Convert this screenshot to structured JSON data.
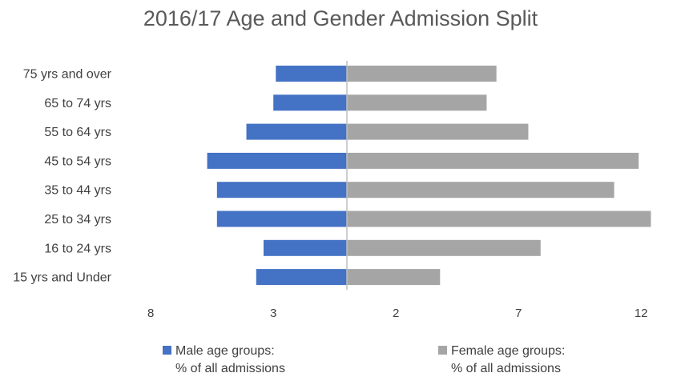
{
  "chart_data": {
    "type": "bar",
    "orientation": "horizontal",
    "layout": "population-pyramid",
    "title": "2016/17 Age and Gender Admission Split",
    "categories": [
      "75 yrs and over",
      "65 to 74 yrs",
      "55 to 64 yrs",
      "45 to 54 yrs",
      "35 to 44 yrs",
      "25 to 34 yrs",
      "16 to 24 yrs",
      "15 yrs and Under"
    ],
    "series": [
      {
        "name": "Male age groups: % of all admissions",
        "color": "#4472C4",
        "side": "left",
        "values": [
          2.9,
          3.0,
          4.1,
          5.7,
          5.3,
          5.3,
          3.4,
          3.7
        ]
      },
      {
        "name": "Female age groups: % of all admissions",
        "color": "#A5A5A5",
        "side": "right",
        "values": [
          6.1,
          5.7,
          7.4,
          11.9,
          10.9,
          12.4,
          7.9,
          3.8
        ]
      }
    ],
    "x_ticks": [
      {
        "label": "8",
        "value": -8
      },
      {
        "label": "3",
        "value": -3
      },
      {
        "label": "2",
        "value": 2
      },
      {
        "label": "7",
        "value": 7
      },
      {
        "label": "12",
        "value": 12
      }
    ],
    "xlim": [
      -8,
      12
    ],
    "grid": false,
    "legend_position": "bottom",
    "legend": {
      "male_line1": "Male age groups:",
      "male_line2": "% of all admissions",
      "female_line1": "Female age groups:",
      "female_line2": "% of all admissions"
    }
  }
}
